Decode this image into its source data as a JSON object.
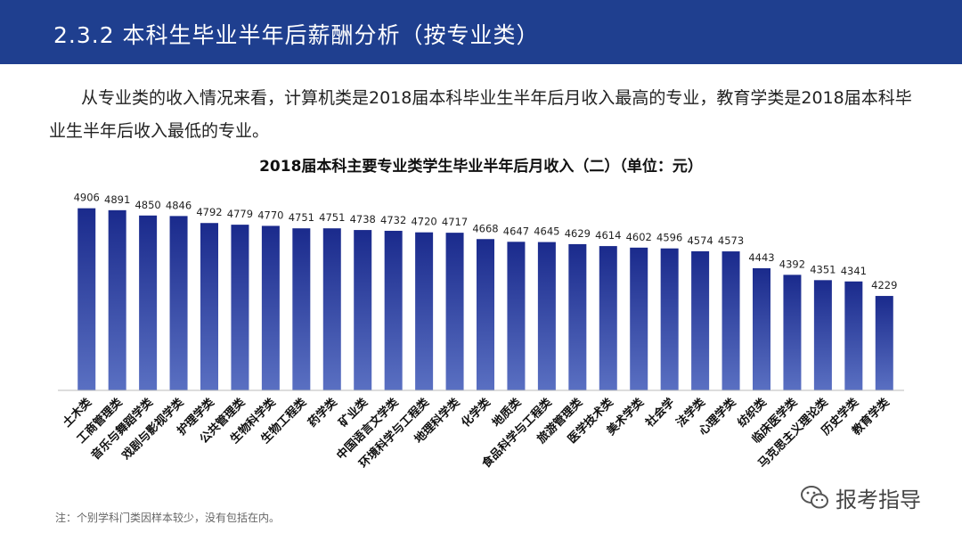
{
  "header": {
    "title": "2.3.2 本科生毕业半年后薪酬分析（按专业类）"
  },
  "description": "从专业类的收入情况来看，计算机类是2018届本科毕业生半年后月收入最高的专业，教育学类是2018届本科毕业生半年后收入最低的专业。",
  "footnote": "注：个别学科门类因样本较少，没有包括在内。",
  "watermark": {
    "text": "报考指导",
    "icon": "wechat-icon"
  },
  "colors": {
    "header": "#1f3f8f",
    "bar_top": "#1a2a8c",
    "bar_bottom": "#5a70c2"
  },
  "chart_data": {
    "type": "bar",
    "title": "2018届本科主要专业类学生毕业半年后月收入（二）（单位：元）",
    "xlabel": "",
    "ylabel": "",
    "ylim": [
      3500,
      5000
    ],
    "grid": false,
    "categories": [
      "土木类",
      "工商管理类",
      "音乐与舞蹈学类",
      "戏剧与影视学类",
      "护理学类",
      "公共管理类",
      "生物科学类",
      "生物工程类",
      "药学类",
      "矿业类",
      "中国语言文学类",
      "环境科学与工程类",
      "地理科学类",
      "化学类",
      "地质类",
      "食品科学与工程类",
      "旅游管理类",
      "医学技术类",
      "美术学类",
      "社会学",
      "法学类",
      "心理学类",
      "纺织类",
      "临床医学类",
      "马克思主义理论类",
      "历史学类",
      "教育学类"
    ],
    "values": [
      4906,
      4891,
      4850,
      4846,
      4792,
      4779,
      4770,
      4751,
      4751,
      4738,
      4732,
      4720,
      4717,
      4668,
      4647,
      4645,
      4629,
      4614,
      4602,
      4596,
      4574,
      4573,
      4443,
      4392,
      4351,
      4341,
      4229
    ]
  }
}
